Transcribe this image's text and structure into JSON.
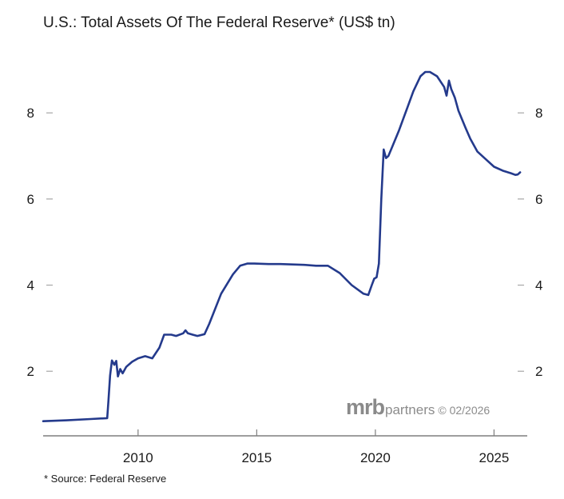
{
  "chart_data": {
    "type": "line",
    "title": "U.S.: Total Assets Of The Federal Reserve* (US$ tn)",
    "source_note": "* Source: Federal Reserve",
    "watermark": {
      "brand": "mrb",
      "suffix": "partners",
      "date": "© 02/2026"
    },
    "xlim": [
      2006.0,
      2026.4
    ],
    "ylim": [
      0.5,
      9.6
    ],
    "x_ticks": [
      2010,
      2015,
      2020,
      2025
    ],
    "y_ticks": [
      2,
      4,
      6,
      8
    ],
    "grid": false,
    "line_color": "#243a8c",
    "series": [
      {
        "x": [
          2006.0,
          2007.0,
          2008.0,
          2008.7,
          2008.75,
          2008.82,
          2008.9,
          2009.0,
          2009.08,
          2009.15,
          2009.25,
          2009.35,
          2009.5,
          2009.6,
          2009.75,
          2010.0,
          2010.3,
          2010.6,
          2010.9,
          2011.1,
          2011.4,
          2011.6,
          2011.9,
          2012.0,
          2012.1,
          2012.3,
          2012.5,
          2012.8,
          2013.0,
          2013.5,
          2014.0,
          2014.3,
          2014.6,
          2014.9,
          2015.5,
          2016.0,
          2016.5,
          2017.0,
          2017.5,
          2018.0,
          2018.5,
          2019.0,
          2019.5,
          2019.7,
          2019.85,
          2019.95,
          2020.05,
          2020.15,
          2020.25,
          2020.35,
          2020.45,
          2020.55,
          2020.7,
          2021.0,
          2021.3,
          2021.6,
          2021.9,
          2022.1,
          2022.3,
          2022.6,
          2022.9,
          2023.0,
          2023.1,
          2023.2,
          2023.35,
          2023.5,
          2023.8,
          2024.0,
          2024.3,
          2024.6,
          2025.0,
          2025.4,
          2025.7,
          2025.9,
          2026.0,
          2026.1
        ],
        "y": [
          0.84,
          0.86,
          0.89,
          0.91,
          1.3,
          1.9,
          2.25,
          2.15,
          2.24,
          1.88,
          2.05,
          1.95,
          2.1,
          2.15,
          2.22,
          2.3,
          2.35,
          2.3,
          2.55,
          2.85,
          2.85,
          2.82,
          2.88,
          2.95,
          2.88,
          2.85,
          2.82,
          2.86,
          3.1,
          3.8,
          4.25,
          4.45,
          4.5,
          4.5,
          4.49,
          4.49,
          4.48,
          4.47,
          4.45,
          4.45,
          4.28,
          4.0,
          3.8,
          3.77,
          4.0,
          4.15,
          4.18,
          4.5,
          6.0,
          7.15,
          6.95,
          7.0,
          7.2,
          7.6,
          8.05,
          8.5,
          8.85,
          8.95,
          8.95,
          8.85,
          8.6,
          8.4,
          8.75,
          8.55,
          8.35,
          8.05,
          7.65,
          7.4,
          7.1,
          6.95,
          6.75,
          6.65,
          6.6,
          6.56,
          6.57,
          6.62
        ]
      }
    ]
  }
}
